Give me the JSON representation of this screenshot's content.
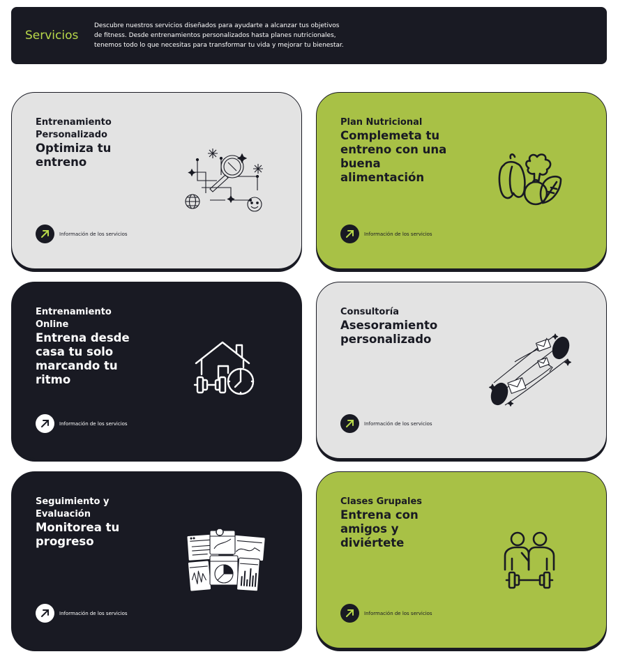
{
  "hero": {
    "title": "Servicios",
    "line1": "Descubre nuestros servicios diseñados para ayudarte a alcanzar tus objetivos",
    "line2": "de fitness. Desde entrenamientos personalizados hasta planes nutricionales,",
    "line3": "tenemos todo lo que necesitas para transformar tu vida y mejorar tu bienestar."
  },
  "colors": {
    "dark": "#191a23",
    "green": "#a8c146",
    "gray": "#e3e3e3",
    "accent": "#b9d94a"
  },
  "cards": [
    {
      "cat1": "Entrenamiento",
      "cat2": "Personalizado",
      "head1": "Optimiza tu",
      "head2": "entreno",
      "link": "Información de los servicios",
      "icon": "magnifier-analytics-icon"
    },
    {
      "cat1": "Plan Nutricional",
      "head1": "Complemeta tu",
      "head2": "entreno con una",
      "head3": "buena",
      "head4": "alimentación",
      "link": "Información de los servicios",
      "icon": "vegetables-icon"
    },
    {
      "cat1": "Entrenamiento",
      "cat2": "Online",
      "head1": "Entrena desde",
      "head2": "casa tu solo",
      "head3": "marcando tu",
      "head4": "ritmo",
      "link": "Información de los servicios",
      "icon": "home-dumbbell-clock-icon"
    },
    {
      "cat1": "Consultoría",
      "head1": "Asesoramiento",
      "head2": "personalizado",
      "link": "Información de los servicios",
      "icon": "messages-tube-icon"
    },
    {
      "cat1": "Seguimiento y",
      "cat2": "Evaluación",
      "head1": "Monitorea tu",
      "head2": "progreso",
      "link": "Información de los servicios",
      "icon": "charts-windows-icon"
    },
    {
      "cat1": "Clases Grupales",
      "head1": "Entrena con",
      "head2": "amigos y",
      "head3": "diviértete",
      "link": "Información de los servicios",
      "icon": "group-dumbbell-icon"
    }
  ]
}
